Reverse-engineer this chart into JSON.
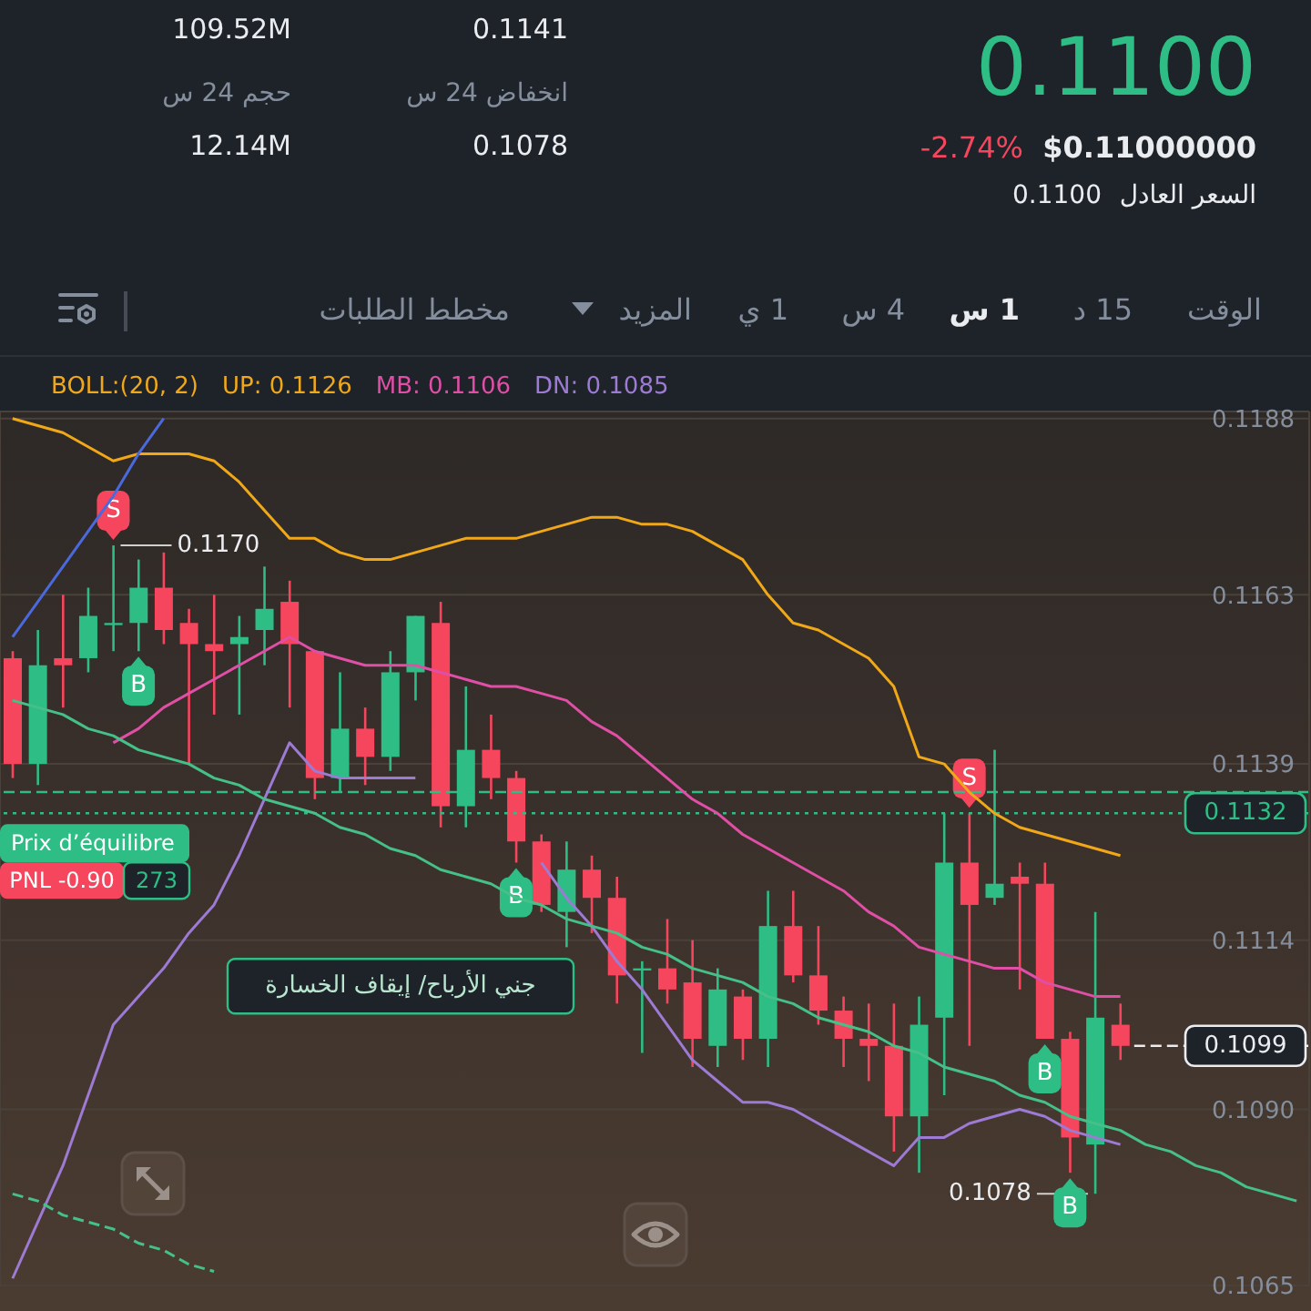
{
  "chart_data": {
    "type": "candlestick",
    "title": "0.1100",
    "categories": [
      null,
      null,
      null,
      null,
      null,
      null,
      null,
      null,
      null,
      null,
      null,
      null,
      null,
      null,
      null,
      null,
      null,
      null,
      null,
      null,
      null,
      null,
      null,
      null,
      null,
      null,
      null,
      null,
      null,
      null,
      null,
      null,
      null,
      null,
      null,
      null,
      null,
      null,
      null,
      null,
      null,
      null,
      null,
      null,
      null,
      null,
      null,
      null,
      null,
      null,
      null,
      null
    ],
    "ohlc": [
      [
        0.1154,
        0.1155,
        0.1137,
        0.1139
      ],
      [
        0.1139,
        0.1158,
        0.1136,
        0.1153
      ],
      [
        0.1154,
        0.1163,
        0.1147,
        0.1153
      ],
      [
        0.1154,
        0.1164,
        0.1152,
        0.116
      ],
      [
        0.1159,
        0.117,
        0.1155,
        0.1159
      ],
      [
        0.1159,
        0.1168,
        0.1155,
        0.1164
      ],
      [
        0.1164,
        0.1169,
        0.1156,
        0.1158
      ],
      [
        0.1159,
        0.1161,
        0.1139,
        0.1156
      ],
      [
        0.1156,
        0.1163,
        0.1146,
        0.1155
      ],
      [
        0.1156,
        0.116,
        0.1146,
        0.1157
      ],
      [
        0.1158,
        0.1167,
        0.1153,
        0.1161
      ],
      [
        0.1162,
        0.1165,
        0.1147,
        0.1156
      ],
      [
        0.1155,
        0.1155,
        0.1134,
        0.1137
      ],
      [
        0.1137,
        0.1152,
        0.1135,
        0.1144
      ],
      [
        0.1144,
        0.1147,
        0.1136,
        0.114
      ],
      [
        0.114,
        0.1155,
        0.1138,
        0.1152
      ],
      [
        0.1152,
        0.116,
        0.1148,
        0.116
      ],
      [
        0.1159,
        0.1162,
        0.113,
        0.1133
      ],
      [
        0.1133,
        0.115,
        0.113,
        0.1141
      ],
      [
        0.1141,
        0.1146,
        0.1134,
        0.1137
      ],
      [
        0.1137,
        0.1138,
        0.1125,
        0.1128
      ],
      [
        0.1128,
        0.1129,
        0.1118,
        0.1119
      ],
      [
        0.1118,
        0.1128,
        0.1113,
        0.1124
      ],
      [
        0.1124,
        0.1126,
        0.1115,
        0.112
      ],
      [
        0.112,
        0.1123,
        0.1105,
        0.1109
      ],
      [
        0.111,
        0.1111,
        0.1098,
        0.111
      ],
      [
        0.111,
        0.1117,
        0.1105,
        0.1107
      ],
      [
        0.1108,
        0.1114,
        0.1096,
        0.11
      ],
      [
        0.1099,
        0.111,
        0.1096,
        0.1107
      ],
      [
        0.1106,
        0.1107,
        0.1097,
        0.11
      ],
      [
        0.11,
        0.1121,
        0.1096,
        0.1116
      ],
      [
        0.1116,
        0.1121,
        0.1108,
        0.1109
      ],
      [
        0.1109,
        0.1116,
        0.1102,
        0.1104
      ],
      [
        0.1104,
        0.1106,
        0.1096,
        0.11
      ],
      [
        0.11,
        0.1105,
        0.1094,
        0.1099
      ],
      [
        0.1099,
        0.1105,
        0.1084,
        0.1089
      ],
      [
        0.1089,
        0.1106,
        0.1081,
        0.1102
      ],
      [
        0.1103,
        0.1132,
        0.1092,
        0.1125
      ],
      [
        0.1125,
        0.1132,
        0.1099,
        0.1119
      ],
      [
        0.112,
        0.1141,
        0.1119,
        0.1122
      ],
      [
        0.1123,
        0.1125,
        0.1107,
        0.1122
      ],
      [
        0.1122,
        0.1125,
        0.11,
        0.11
      ],
      [
        0.11,
        0.1101,
        0.1081,
        0.1086
      ],
      [
        0.1085,
        0.1118,
        0.1078,
        0.1103
      ],
      [
        0.1102,
        0.1105,
        0.1097,
        0.1099
      ],
      null,
      null,
      null,
      null,
      null,
      null,
      null
    ],
    "colors": [
      "#f6465d",
      "#2ebd85",
      "#f6465d",
      "#2ebd85",
      "#2ebd85",
      "#2ebd85",
      "#f6465d",
      "#f6465d",
      "#f6465d",
      "#2ebd85",
      "#2ebd85",
      "#f6465d",
      "#f6465d",
      "#2ebd85",
      "#f6465d",
      "#2ebd85",
      "#2ebd85",
      "#f6465d",
      "#2ebd85",
      "#f6465d",
      "#f6465d",
      "#f6465d",
      "#2ebd85",
      "#f6465d",
      "#f6465d",
      "#2ebd85",
      "#f6465d",
      "#f6465d",
      "#2ebd85",
      "#f6465d",
      "#2ebd85",
      "#f6465d",
      "#f6465d",
      "#f6465d",
      "#f6465d",
      "#f6465d",
      "#2ebd85",
      "#2ebd85",
      "#f6465d",
      "#2ebd85",
      "#f6465d",
      "#f6465d",
      "#f6465d",
      "#2ebd85",
      "#f6465d",
      null,
      null,
      null,
      null,
      null,
      null,
      null
    ],
    "series": [
      {
        "name": "UP: 0.1126",
        "type": "line",
        "color": "#f0a818",
        "values": [
          0.1188,
          0.1187,
          0.1186,
          0.1184,
          0.1182,
          0.1183,
          0.1183,
          0.1183,
          0.1182,
          0.1179,
          0.1175,
          0.1171,
          0.1171,
          0.1169,
          0.1168,
          0.1168,
          0.1169,
          0.117,
          0.1171,
          0.1171,
          0.1171,
          0.1172,
          0.1173,
          0.1174,
          0.1174,
          0.1173,
          0.1173,
          0.1172,
          0.117,
          0.1168,
          0.1163,
          0.1159,
          0.1158,
          0.1156,
          0.1154,
          0.115,
          0.114,
          0.1139,
          0.1135,
          0.1132,
          0.113,
          0.1129,
          0.1128,
          0.1127,
          0.1126,
          null,
          null,
          null,
          null,
          null,
          null,
          null
        ]
      },
      {
        "name": "MB: 0.1106",
        "type": "line",
        "color": "#e04fa6",
        "values": [
          null,
          null,
          null,
          null,
          0.1142,
          0.1144,
          0.1147,
          0.1149,
          0.1151,
          0.1153,
          0.1155,
          0.1157,
          0.1155,
          0.1154,
          0.1153,
          0.1153,
          0.1153,
          0.1152,
          0.1151,
          0.115,
          0.115,
          0.1149,
          0.1148,
          0.1145,
          0.1143,
          0.114,
          0.1137,
          0.1134,
          0.1132,
          0.1129,
          0.1127,
          0.1125,
          0.1123,
          0.1121,
          0.1118,
          0.1116,
          0.1113,
          0.1112,
          0.1111,
          0.111,
          0.111,
          0.1108,
          0.1107,
          0.1106,
          0.1106,
          null,
          null,
          null,
          null,
          null,
          null,
          null
        ]
      },
      {
        "name": "DN: 0.1085",
        "type": "line",
        "color": "#9d7ad3",
        "values": [
          0.1066,
          0.1074,
          0.1082,
          0.1092,
          0.1102,
          0.1106,
          0.111,
          0.1115,
          0.1119,
          0.1126,
          0.1134,
          0.1142,
          0.1138,
          0.1137,
          0.1137,
          0.1137,
          0.1137,
          null,
          null,
          null,
          null,
          0.1125,
          0.112,
          0.1116,
          0.1111,
          0.1107,
          0.1102,
          0.1097,
          0.1094,
          0.1091,
          0.1091,
          0.109,
          0.1088,
          0.1086,
          0.1084,
          0.1082,
          0.1086,
          0.1086,
          0.1088,
          0.1089,
          0.109,
          0.1089,
          0.1087,
          0.1086,
          0.1085,
          null,
          null,
          null,
          null,
          null,
          null,
          null
        ]
      },
      {
        "type": "line",
        "color": "#4a69dd",
        "values": [
          0.1157,
          0.1162,
          0.1167,
          0.1172,
          0.1177,
          0.1183,
          0.1188,
          null,
          null,
          null,
          null,
          null,
          null,
          null,
          null,
          null,
          null,
          null,
          null,
          null,
          null,
          null,
          null,
          null,
          null,
          null,
          null,
          null,
          null,
          null,
          null,
          null,
          null,
          null,
          null,
          null,
          null,
          null,
          null,
          null,
          null,
          null,
          null,
          null,
          null,
          null,
          null,
          null,
          null,
          null,
          null,
          null
        ]
      },
      {
        "type": "line",
        "color": "#45c088",
        "values": [
          0.1148,
          0.1147,
          0.1146,
          0.1144,
          0.1143,
          0.1141,
          0.114,
          0.1139,
          0.1137,
          0.1136,
          0.1134,
          0.1133,
          0.1132,
          0.113,
          0.1129,
          0.1127,
          0.1126,
          0.1124,
          0.1123,
          0.1122,
          0.112,
          0.1119,
          0.1117,
          0.1116,
          0.1115,
          0.1113,
          0.1112,
          0.111,
          0.1109,
          0.1108,
          0.1106,
          0.1105,
          0.1103,
          0.1102,
          0.1101,
          0.1099,
          0.1098,
          0.1096,
          0.1095,
          0.1094,
          0.1092,
          0.1091,
          0.1089,
          0.1088,
          0.1087,
          0.1085,
          0.1084,
          0.1082,
          0.1081,
          0.1079,
          0.1078,
          0.1077
        ]
      },
      {
        "type": "line",
        "color": "#45c088",
        "line_style": "dashed",
        "values": [
          0.1078,
          0.1077,
          0.1075,
          0.1074,
          0.1073,
          0.1071,
          0.107,
          0.1068,
          0.1067,
          null,
          null,
          null,
          null,
          null,
          null,
          null,
          null,
          null,
          null,
          null,
          null,
          null,
          null,
          null,
          null,
          null,
          null,
          null,
          null,
          null,
          null,
          null,
          null,
          null,
          null,
          null,
          null,
          null,
          null,
          null,
          null,
          null,
          null,
          null,
          null,
          null,
          null,
          null,
          null,
          null,
          null,
          null
        ]
      }
    ],
    "legend": "top left",
    "legend_title": "BOLL:(20, 2)",
    "ylim": [
      0.1065,
      0.1189
    ],
    "yticks": [
      0.1065,
      {
        "value": 0.109,
        "label": "0.1090"
      },
      0.1114,
      0.1139,
      0.1163,
      0.1188
    ],
    "grid": true,
    "tick_labels": "y",
    "ref_lines": [
      {
        "axis": "y",
        "value": 0.1132,
        "color": "#2ebd85",
        "line_style": "dotted"
      },
      {
        "axis": "y",
        "value": 0.1135,
        "color": "#2ebd85",
        "line_style": "dashed"
      },
      {
        "axis": "y",
        "value": 0.1099,
        "color": "#eaecef",
        "line_style": "dashed"
      }
    ],
    "annotations": [
      "109.52M",
      "0.1141",
      "حجم 24 س",
      "12.14M",
      "انخفاض 24 س",
      "0.1078",
      "-2.74%",
      "$0.11000000",
      "السعر العادل",
      "0.1100",
      "الوقت",
      "15 د",
      "1 س",
      "4 س",
      "1 ي",
      "المزيد",
      "مخطط الطلبات",
      "0.1170",
      "0.1078",
      "S",
      "B",
      "B",
      "S",
      "B",
      "B",
      "Prix d’équilibre",
      "PNL -0.90",
      "273",
      "جني الأرباح/ إيقاف الخسارة",
      {
        "text": "0.1132",
        "y": 0.1132
      },
      {
        "text": "0.1099",
        "y": 0.1099
      }
    ]
  }
}
